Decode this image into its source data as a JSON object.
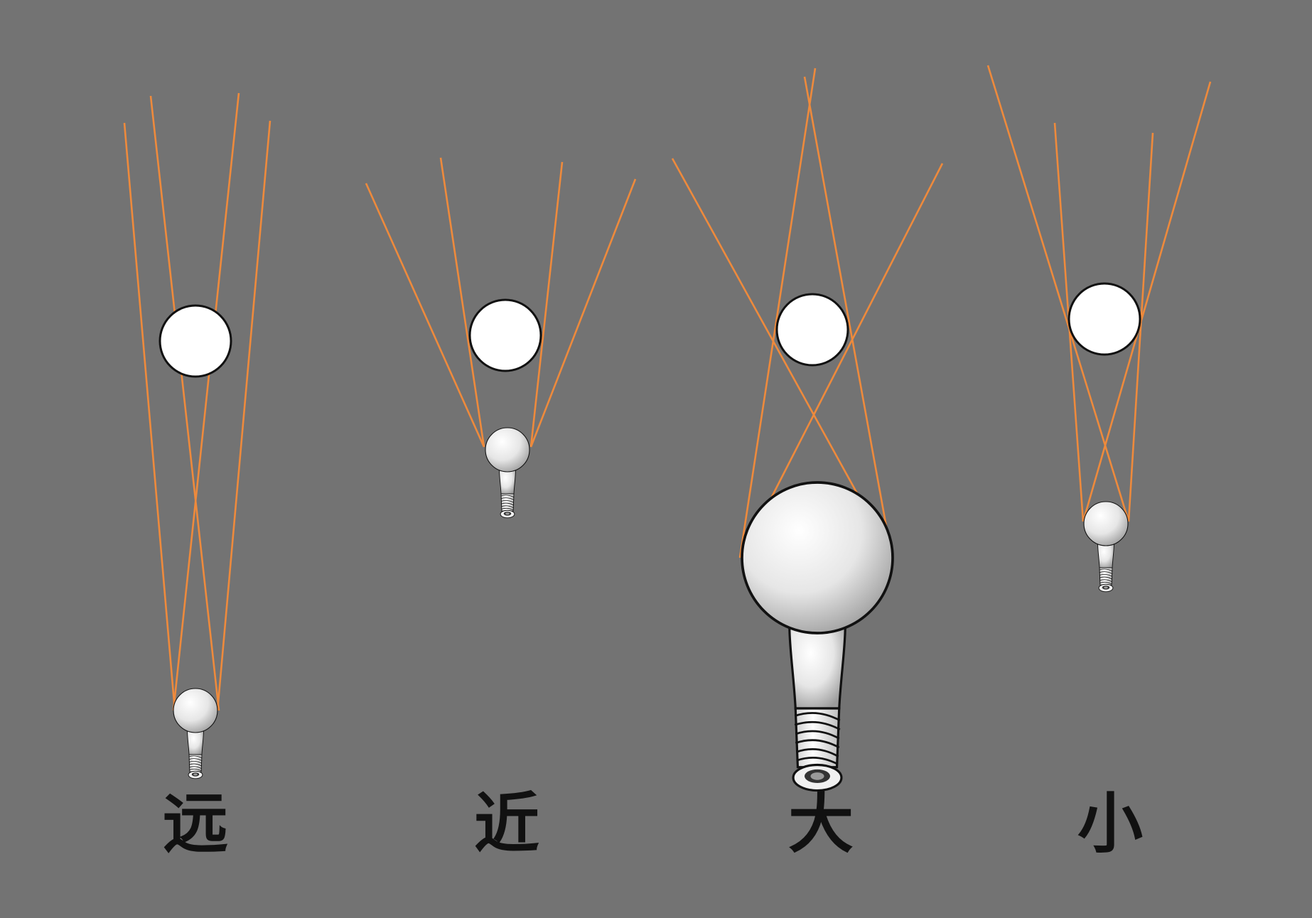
{
  "colors": {
    "background": "#737373",
    "ray": "#ee8a3c",
    "sphere": "#ffffff",
    "outline": "#111111",
    "bulb_glass": "#e4e4e4",
    "bulb_base": "#f4f4f4"
  },
  "panels": [
    {
      "id": "far",
      "caption": "远",
      "bulb": "small-bulb-far"
    },
    {
      "id": "near",
      "caption": "近",
      "bulb": "small-bulb-near"
    },
    {
      "id": "large",
      "caption": "大",
      "bulb": "large-bulb"
    },
    {
      "id": "small",
      "caption": "小",
      "bulb": "small-bulb"
    }
  ]
}
